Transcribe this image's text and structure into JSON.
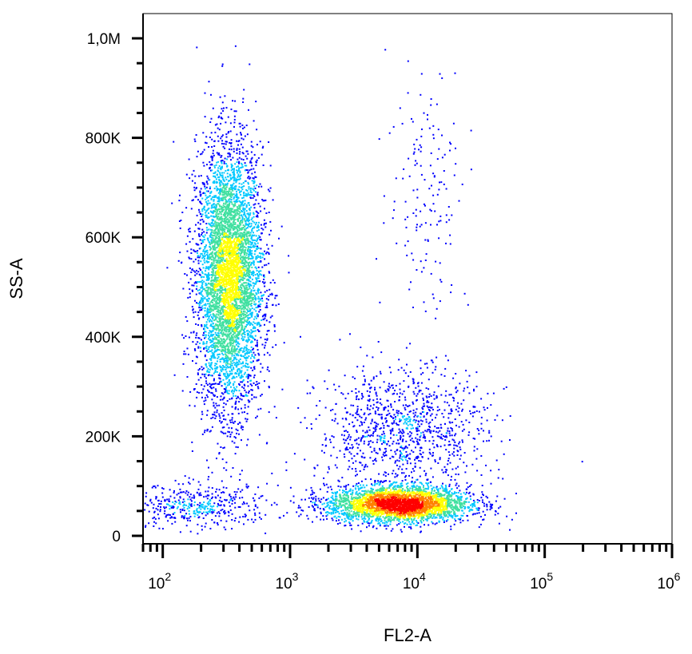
{
  "chart_data": {
    "type": "scatter",
    "subtype": "flow-cytometry-density-dot-plot",
    "xlabel": "FL2-A",
    "ylabel": "SS-A",
    "x_scale": "log",
    "xlim": [
      70,
      1000000
    ],
    "ylim": [
      0,
      1050000
    ],
    "x_ticks": [
      {
        "value": 100,
        "base": "10",
        "exp": "2"
      },
      {
        "value": 1000,
        "base": "10",
        "exp": "3"
      },
      {
        "value": 10000,
        "base": "10",
        "exp": "4"
      },
      {
        "value": 100000,
        "base": "10",
        "exp": "5"
      },
      {
        "value": 1000000,
        "base": "10",
        "exp": "6"
      }
    ],
    "y_ticks": [
      {
        "value": 0,
        "label": "0"
      },
      {
        "value": 200000,
        "label": "200K"
      },
      {
        "value": 400000,
        "label": "400K"
      },
      {
        "value": 600000,
        "label": "600K"
      },
      {
        "value": 800000,
        "label": "800K"
      },
      {
        "value": 1000000,
        "label": "1,0M"
      }
    ],
    "density_colormap": [
      "#0000ff",
      "#00c8ff",
      "#40e0a0",
      "#ffff00",
      "#ff8000",
      "#ff0000"
    ],
    "populations": [
      {
        "center_x": 330,
        "center_y": 520000,
        "spread_log_x": 0.13,
        "spread_y": 130000,
        "count": 5200
      },
      {
        "center_x": 7000,
        "center_y": 65000,
        "spread_log_x": 0.28,
        "spread_y": 18000,
        "count": 3200
      },
      {
        "center_x": 7500,
        "center_y": 210000,
        "spread_log_x": 0.33,
        "spread_y": 65000,
        "count": 1100
      },
      {
        "center_x": 12000,
        "center_y": 700000,
        "spread_log_x": 0.16,
        "spread_y": 130000,
        "count": 160
      },
      {
        "center_x": 180,
        "center_y": 60000,
        "spread_log_x": 0.3,
        "spread_y": 22000,
        "count": 450
      }
    ]
  }
}
